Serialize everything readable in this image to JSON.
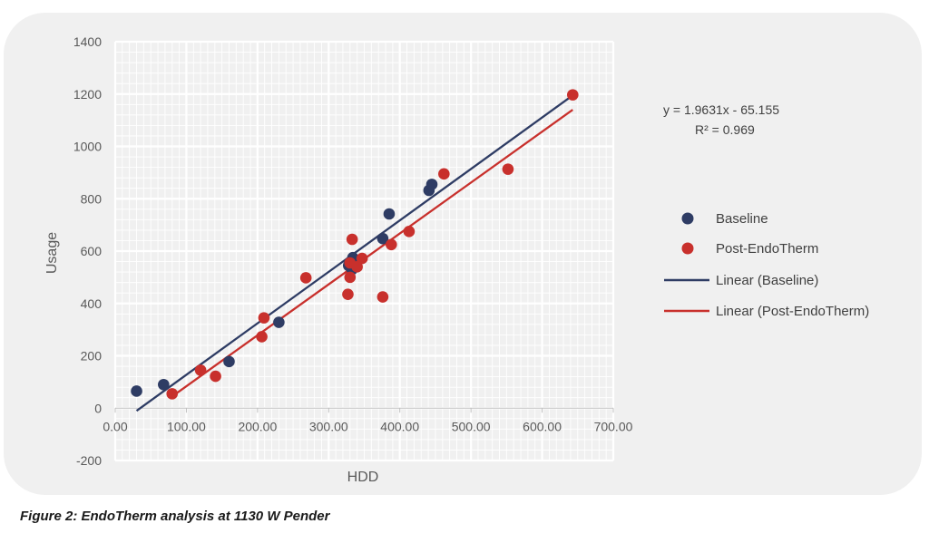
{
  "caption": "Figure 2: EndoTherm analysis at 1130 W Pender",
  "colors": {
    "baseline": "#2e3c64",
    "post": "#c8302c",
    "card": "#f0f0f0",
    "grid": "#ffffff",
    "tick": "#595959"
  },
  "chart_data": {
    "type": "scatter",
    "title": "",
    "xlabel": "HDD",
    "ylabel": "Usage",
    "xlim": [
      0,
      700
    ],
    "ylim": [
      -200,
      1400
    ],
    "xticks": [
      0,
      100,
      200,
      300,
      400,
      500,
      600,
      700
    ],
    "xtick_labels": [
      "0.00",
      "100.00",
      "200.00",
      "300.00",
      "400.00",
      "500.00",
      "600.00",
      "700.00"
    ],
    "yticks": [
      -200,
      0,
      200,
      400,
      600,
      800,
      1000,
      1200,
      1400
    ],
    "ytick_labels": [
      "-200",
      "0",
      "200",
      "400",
      "600",
      "800",
      "1000",
      "1200",
      "1400"
    ],
    "grid": true,
    "legend_position": "right",
    "equation": "y = 1.9631x - 65.155",
    "r_squared": "R² = 0.969",
    "series": [
      {
        "name": "Baseline",
        "color": "#2e3c64",
        "points": [
          [
            30,
            65
          ],
          [
            68,
            90
          ],
          [
            160,
            178
          ],
          [
            230,
            328
          ],
          [
            328,
            545
          ],
          [
            334,
            575
          ],
          [
            333,
            530
          ],
          [
            376,
            648
          ],
          [
            385,
            742
          ],
          [
            441,
            832
          ],
          [
            445,
            855
          ]
        ]
      },
      {
        "name": "Post-EndoTherm",
        "color": "#c8302c",
        "points": [
          [
            80,
            55
          ],
          [
            120,
            145
          ],
          [
            141,
            122
          ],
          [
            206,
            273
          ],
          [
            209,
            345
          ],
          [
            268,
            498
          ],
          [
            327,
            435
          ],
          [
            330,
            500
          ],
          [
            330,
            555
          ],
          [
            333,
            645
          ],
          [
            340,
            540
          ],
          [
            347,
            572
          ],
          [
            376,
            425
          ],
          [
            388,
            625
          ],
          [
            413,
            675
          ],
          [
            462,
            895
          ],
          [
            552,
            913
          ],
          [
            643,
            1197
          ]
        ]
      }
    ],
    "trendlines": [
      {
        "name": "Linear (Baseline)",
        "color": "#2e3c64",
        "x": [
          30,
          643
        ],
        "y": [
          -10,
          1195
        ]
      },
      {
        "name": "Linear (Post-EndoTherm)",
        "color": "#c8302c",
        "x": [
          80,
          643
        ],
        "y": [
          45,
          1140
        ]
      }
    ]
  }
}
